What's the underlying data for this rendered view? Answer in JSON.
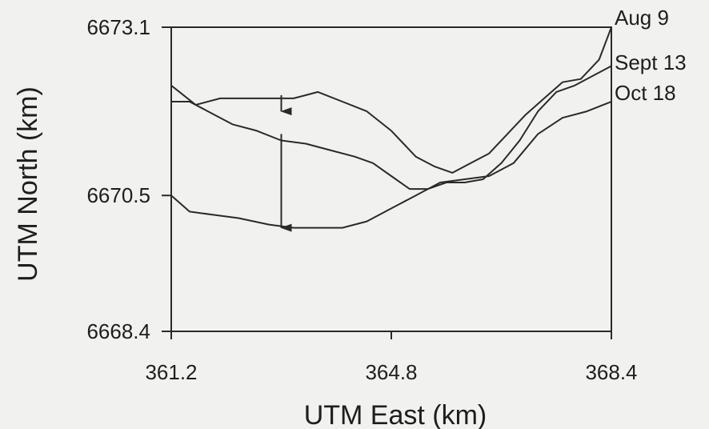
{
  "chart_data": {
    "type": "line",
    "title": "",
    "xlabel": "UTM East (km)",
    "ylabel": "UTM North (km)",
    "xlim": [
      361.2,
      368.4
    ],
    "ylim": [
      6668.4,
      6673.1
    ],
    "x_ticks": [
      "361.2",
      "364.8",
      "368.4"
    ],
    "y_ticks": [
      "6673.1",
      "6670.5",
      "6668.4"
    ],
    "x_tick_values": [
      361.2,
      364.8,
      368.4
    ],
    "y_tick_values": [
      6673.1,
      6670.5,
      6668.4
    ],
    "grid": false,
    "line_color": "#2a2a2a",
    "series": [
      {
        "name": "Aug 9",
        "x": [
          361.2,
          361.6,
          362.0,
          362.4,
          362.8,
          363.2,
          363.6,
          364.0,
          364.4,
          364.8,
          365.2,
          365.5,
          365.8,
          366.1,
          366.4,
          366.7,
          367.0,
          367.3,
          367.6,
          367.9,
          368.2,
          368.4
        ],
        "y": [
          6672.2,
          6671.9,
          6672.0,
          6672.0,
          6672.0,
          6672.0,
          6672.1,
          6671.95,
          6671.8,
          6671.5,
          6671.1,
          6670.95,
          6670.85,
          6671.0,
          6671.15,
          6671.45,
          6671.75,
          6672.0,
          6672.25,
          6672.3,
          6672.6,
          6673.1
        ]
      },
      {
        "name": "Sept 13",
        "x": [
          361.2,
          361.5,
          361.8,
          362.2,
          362.6,
          363.0,
          363.4,
          363.8,
          364.2,
          364.5,
          364.8,
          365.1,
          365.4,
          365.7,
          366.0,
          366.3,
          366.6,
          366.9,
          367.2,
          367.5,
          367.8,
          368.1,
          368.4
        ],
        "y": [
          6671.95,
          6671.95,
          6671.8,
          6671.6,
          6671.5,
          6671.35,
          6671.3,
          6671.2,
          6671.1,
          6671.0,
          6670.8,
          6670.6,
          6670.6,
          6670.7,
          6670.7,
          6670.75,
          6671.0,
          6671.35,
          6671.8,
          6672.1,
          6672.2,
          6672.35,
          6672.5
        ]
      },
      {
        "name": "Oct 18",
        "x": [
          361.2,
          361.5,
          361.9,
          362.3,
          362.8,
          363.2,
          363.6,
          364.0,
          364.4,
          364.8,
          365.2,
          365.6,
          366.0,
          366.4,
          366.8,
          367.2,
          367.6,
          368.0,
          368.4
        ],
        "y": [
          6670.5,
          6670.25,
          6670.2,
          6670.15,
          6670.05,
          6670.0,
          6670.0,
          6670.0,
          6670.1,
          6670.3,
          6670.5,
          6670.7,
          6670.75,
          6670.8,
          6671.0,
          6671.45,
          6671.7,
          6671.8,
          6671.95
        ]
      }
    ],
    "annotations": [
      {
        "type": "arrow",
        "x": 363.0,
        "y_from": 6672.05,
        "y_to": 6671.8
      },
      {
        "type": "arrow",
        "x": 363.0,
        "y_from": 6671.45,
        "y_to": 6670.0
      }
    ]
  }
}
